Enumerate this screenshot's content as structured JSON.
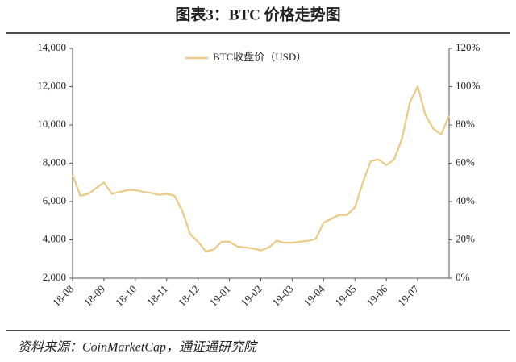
{
  "chart_data": {
    "type": "line",
    "title": "图表3：BTC 价格走势图",
    "source": "资料来源：CoinMarketCap，通证通研究院",
    "categories": [
      "18-08",
      null,
      null,
      null,
      "18-09",
      null,
      null,
      null,
      "18-10",
      null,
      null,
      null,
      "18-11",
      null,
      null,
      null,
      "18-12",
      null,
      null,
      null,
      "19-01",
      null,
      null,
      null,
      "19-02",
      null,
      null,
      null,
      "19-03",
      null,
      null,
      null,
      "19-04",
      null,
      null,
      null,
      "19-05",
      null,
      null,
      null,
      "19-06",
      null,
      null,
      null,
      "19-07",
      null,
      null,
      null,
      null
    ],
    "series": [
      {
        "name": "BTC收盘价（USD）",
        "color": "#ecc985",
        "values": [
          7400,
          6300,
          6400,
          6700,
          7000,
          6400,
          6500,
          6600,
          6600,
          6500,
          6450,
          6350,
          6400,
          6300,
          5500,
          4300,
          3900,
          3400,
          3500,
          3900,
          3900,
          3650,
          3600,
          3550,
          3450,
          3600,
          3950,
          3850,
          3850,
          3900,
          3950,
          4050,
          4900,
          5100,
          5300,
          5300,
          5700,
          7000,
          8100,
          8200,
          7900,
          8200,
          9300,
          11200,
          12000,
          10500,
          9800,
          9500,
          10500
        ]
      }
    ],
    "ylim": [
      2000,
      14000
    ],
    "yticks": [
      {
        "value": 2000,
        "label": "2,000"
      },
      {
        "value": 4000,
        "label": "4,000"
      },
      {
        "value": 6000,
        "label": "6,000"
      },
      {
        "value": 8000,
        "label": "8,000"
      },
      {
        "value": 10000,
        "label": "10,000"
      },
      {
        "value": 12000,
        "label": "12,000"
      },
      {
        "value": 14000,
        "label": "14,000"
      }
    ],
    "y2lim": [
      0,
      120
    ],
    "y2ticks": [
      {
        "value": 0,
        "label": "0%"
      },
      {
        "value": 20,
        "label": "20%"
      },
      {
        "value": 40,
        "label": "40%"
      },
      {
        "value": 60,
        "label": "60%"
      },
      {
        "value": 80,
        "label": "80%"
      },
      {
        "value": 100,
        "label": "100%"
      },
      {
        "value": 120,
        "label": "120%"
      }
    ],
    "legend": "top-left"
  }
}
